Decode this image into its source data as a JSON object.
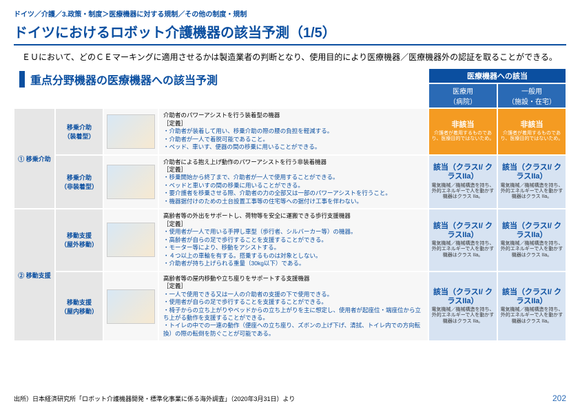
{
  "breadcrumb": "ドイツ／介護／3.政策・制度＞医療機器に対する規制／その他の制度・規制",
  "title": "ドイツにおけるロボット介護機器の該当予測（1/5）",
  "lead": "ＥＵにおいて、どのＣＥマーキングに適用させるかは製造業者の判断となり、使用目的により医療機器／医療機器外の認証を取ることができる。",
  "section_heading": "重点分野機器の医療機器への該当予測",
  "header": {
    "top": "医療機器への該当",
    "sub1": "医療用\n（病院）",
    "sub2": "一般用\n（施設・在宅）"
  },
  "colors": {
    "navy": "#0b4fa0",
    "blue_mid": "#2a6ab5",
    "orange_bg": "#f49b22",
    "orange_text": "#ffffff",
    "blue_cell_bg": "#d7e3f2",
    "blue_cell_text": "#0b4fa0",
    "gray_bg": "#e6e6e6",
    "light_gray": "#f7f7f7"
  },
  "groups": [
    {
      "label": "① 移乗介助",
      "rows": [
        {
          "label": "移乗介助\n（装着型）",
          "img": "illust",
          "desc_title": "介助者のパワーアシストを行う装着型の機器",
          "def": "［定義］",
          "bullets": [
            "介助者が装着して用い、移乗介助の際の腰の負担を軽減する。",
            "介助者が一人で着脱可能であること。",
            "ベッド、車いす、便器の間の移乗に用いることができる。"
          ],
          "status1": {
            "main": "非該当",
            "note": "介護者が着用するものであり、医療目的ではないため。",
            "bg": "#f49b22",
            "color": "#ffffff",
            "note_color": "#ffffff"
          },
          "status2": {
            "main": "非該当",
            "note": "介護者が着用するものであり、医療目的ではないため。",
            "bg": "#f49b22",
            "color": "#ffffff",
            "note_color": "#ffffff"
          }
        },
        {
          "label": "移乗介助\n（非装着型）",
          "img": "illust",
          "desc_title": "介助者による抱え上げ動作のパワーアシストを行う非装着機器",
          "def": "［定義］",
          "bullets": [
            "移乗開始から終了まで、介助者が一人で使用することができる。",
            "ベッドと車いすの間の移乗に用いることができる。",
            "要介護者を移乗させる際、介助者の力の全部又は一部のパワーアシストを行うこと。",
            "機器据付けのための土台設置工事等の住宅等への据付け工事を伴わない。"
          ],
          "status1": {
            "main": "該当（クラスI/ クラスIIa）",
            "note": "電気機械／機械構造を持ち、外的エネルギーで人を動かす機器はクラス IIa。",
            "bg": "#d7e3f2",
            "color": "#0b4fa0",
            "note_color": "#333"
          },
          "status2": {
            "main": "該当（クラスI/ クラスIIa）",
            "note": "電気機械／機械構造を持ち、外的エネルギーで人を動かす機器はクラス IIa。",
            "bg": "#d7e3f2",
            "color": "#0b4fa0",
            "note_color": "#333"
          }
        }
      ]
    },
    {
      "label": "② 移動支援",
      "rows": [
        {
          "label": "移動支援\n（屋外移動）",
          "img": "illust",
          "desc_title": "高齢者等の外出をサポートし、荷物等を安全に運搬できる歩行支援機器",
          "def": "［定義］",
          "bullets": [
            "使用者が一人で用いる手押し車型（歩行者、シルバーカー等）の機器。",
            "高齢者が自らの足で歩行することを支援することができる。",
            "モーター等により、移動をアシストする。",
            "４つ以上の車輪を有する。搭乗するものは対象としない。",
            "介助者が持ち上げられる重量（30kg以下）である。"
          ],
          "status1": {
            "main": "該当（クラスI/ クラスIIa）",
            "note": "電気機械／機械構造を持ち、外的エネルギーで人を動かす機器はクラス IIa。",
            "bg": "#d7e3f2",
            "color": "#0b4fa0",
            "note_color": "#333"
          },
          "status2": {
            "main": "該当（クラスI/ クラスIIa）",
            "note": "電気機械／機械構造を持ち、外的エネルギーで人を動かす機器はクラス IIa。",
            "bg": "#d7e3f2",
            "color": "#0b4fa0",
            "note_color": "#333"
          }
        },
        {
          "label": "移動支援\n（屋内移動）",
          "img": "illust",
          "desc_title": "高齢者等の屋内移動や立ち座りをサポートする支援機器",
          "def": "［定義］",
          "bullets": [
            "一人で使用できる又は一人の介助者の支援の下で使用できる。",
            "使用者が自らの足で歩行することを支援することができる。",
            "椅子からの立ち上がりやベッドからの立ち上がりを主に想定し、使用者が起座位・端座位から立ち上がる動作を支援することができる。",
            "トイレの中での一連の動作（便座への立ち座り、ズボンの上げ下げ、清拭、トイレ内での方向転換）の際の転倒を防ぐことが可能である。"
          ],
          "status1": {
            "main": "該当（クラスI/ クラスIIa）",
            "note": "電気機械／機械構造を持ち、外的エネルギーで人を動かす機器はクラス IIa。",
            "bg": "#d7e3f2",
            "color": "#0b4fa0",
            "note_color": "#333"
          },
          "status2": {
            "main": "該当（クラスI/ クラスIIa）",
            "note": "電気機械／機械構造を持ち、外的エネルギーで人を動かす機器はクラス IIa。",
            "bg": "#d7e3f2",
            "color": "#0b4fa0",
            "note_color": "#333"
          }
        }
      ]
    }
  ],
  "source": "出所）日本経済研究所「ロボット介護機器開発・標準化事業に係る海外調査」（2020年3月31日）より",
  "page_number": "202"
}
